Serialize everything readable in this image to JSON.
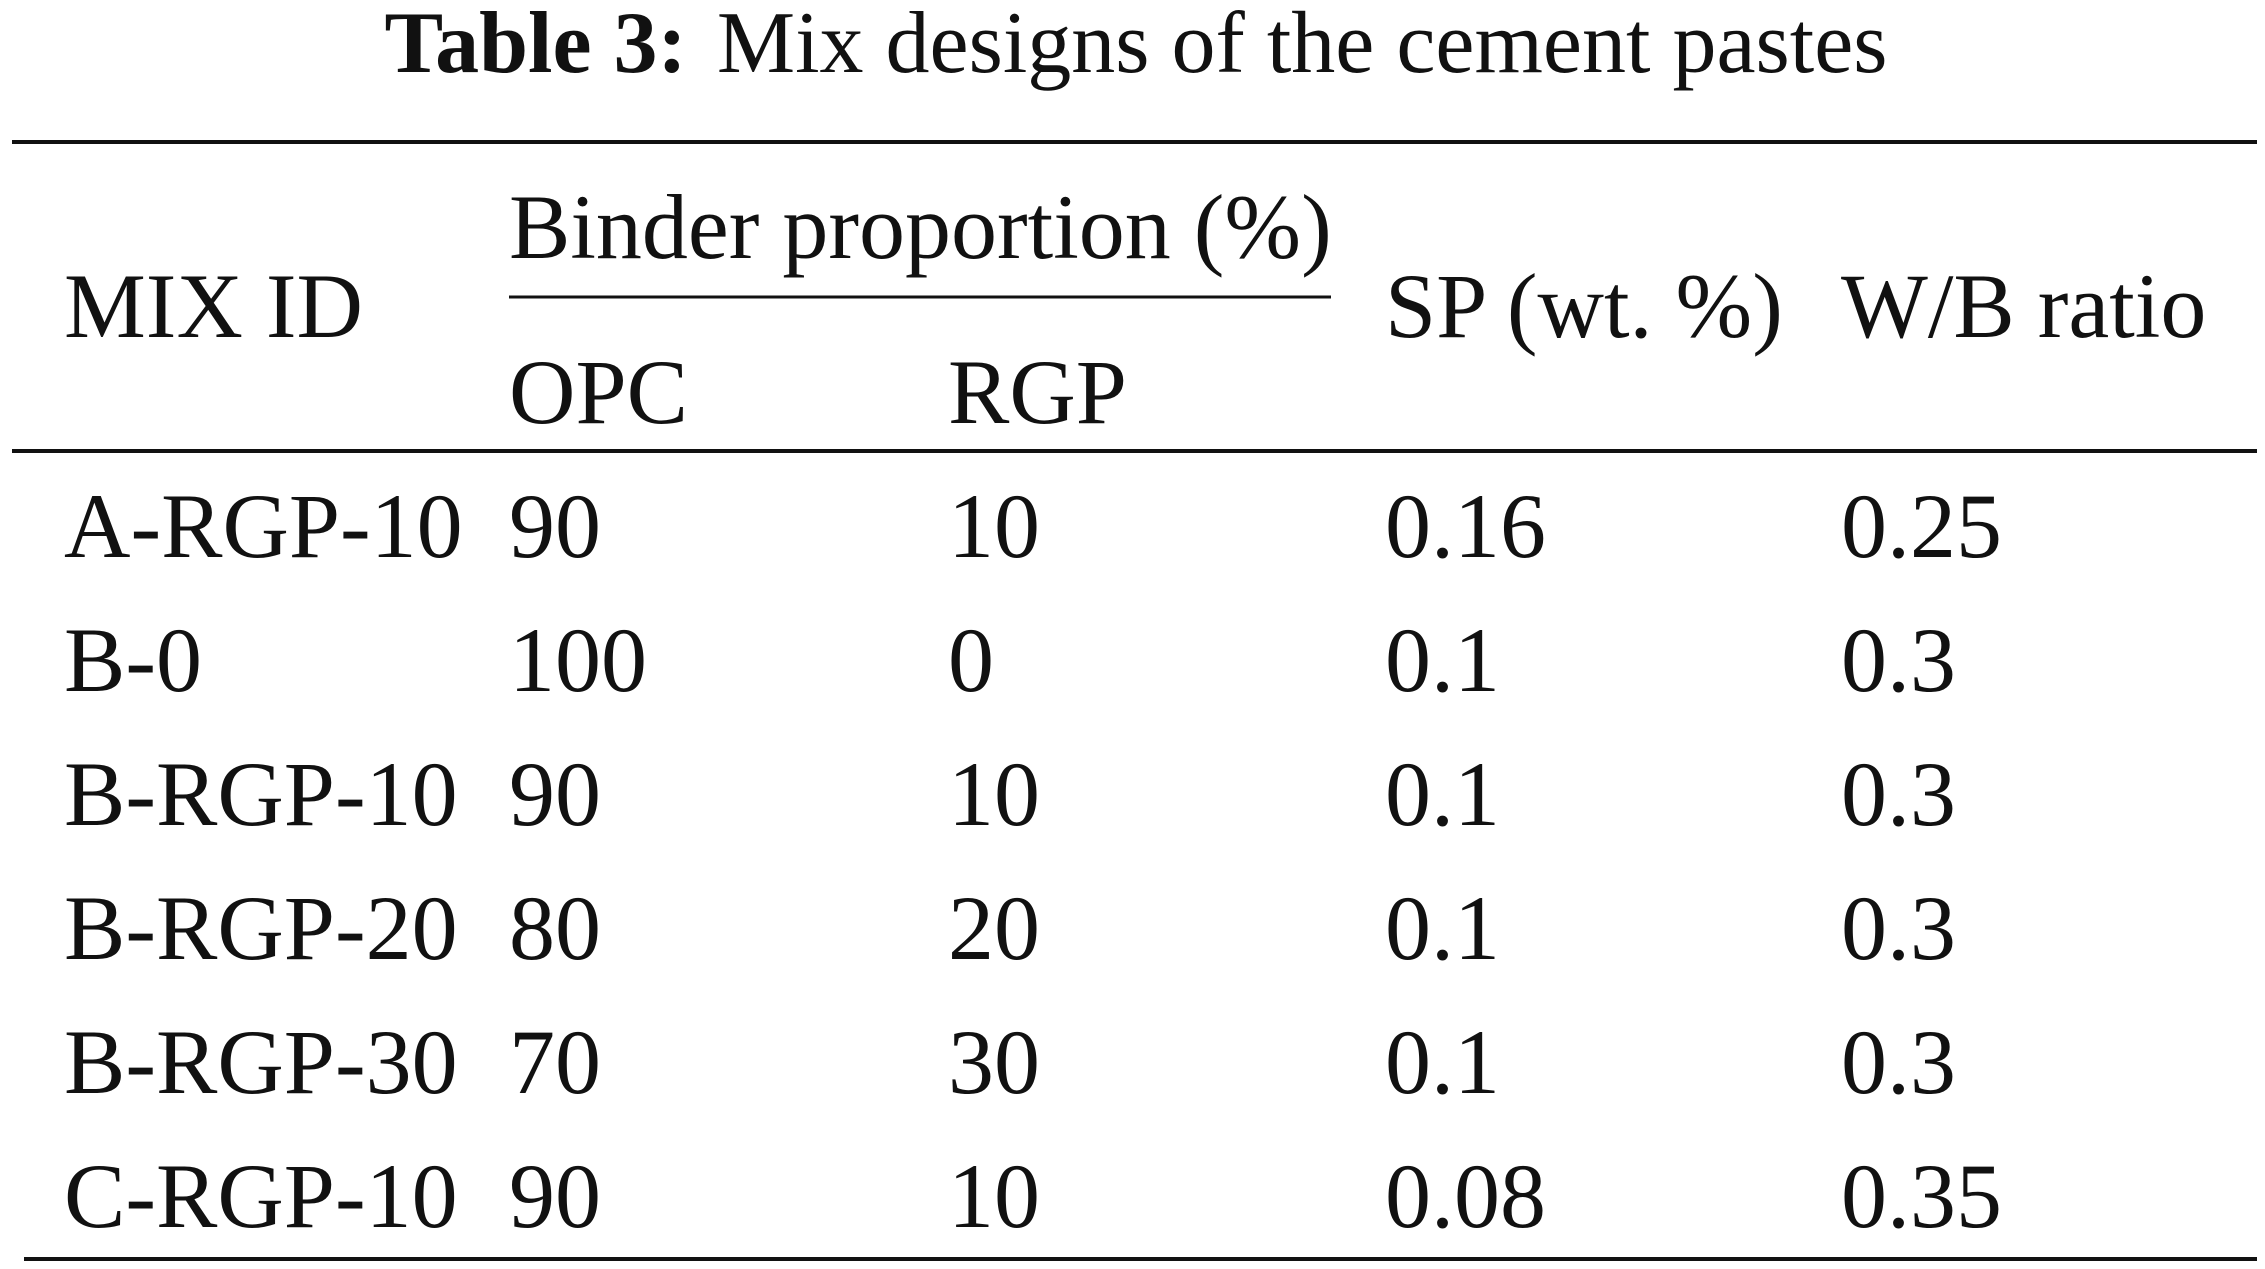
{
  "caption": {
    "label": "Table 3:",
    "text": "Mix designs of the cement pastes"
  },
  "table": {
    "header": {
      "mix_id": "MIX ID",
      "binder_group": "Binder proportion (%)",
      "opc": "OPC",
      "rgp": "RGP",
      "sp": "SP (wt. %)",
      "wb": "W/B ratio"
    },
    "rows": [
      [
        "A-RGP-10",
        "90",
        "10",
        "0.16",
        "0.25"
      ],
      [
        "B-0",
        "100",
        "0",
        "0.1",
        "0.3"
      ],
      [
        "B-RGP-10",
        "90",
        "10",
        "0.1",
        "0.3"
      ],
      [
        "B-RGP-20",
        "80",
        "20",
        "0.1",
        "0.3"
      ],
      [
        "B-RGP-30",
        "70",
        "30",
        "0.1",
        "0.3"
      ],
      [
        "C-RGP-10",
        "90",
        "10",
        "0.08",
        "0.35"
      ]
    ]
  }
}
